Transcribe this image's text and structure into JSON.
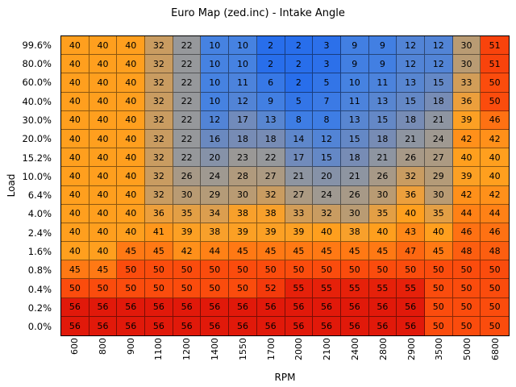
{
  "chart_data": {
    "type": "heatmap",
    "title": "Euro Map (zed.inc) - Intake Angle",
    "xlabel": "RPM",
    "ylabel": "Load",
    "legend": "none",
    "grid": "on",
    "x_categories": [
      "600",
      "800",
      "900",
      "1100",
      "1200",
      "1400",
      "1550",
      "1700",
      "2000",
      "2100",
      "2400",
      "2800",
      "2900",
      "3500",
      "5000",
      "6800"
    ],
    "y_categories": [
      "99.6%",
      "80.0%",
      "60.0%",
      "40.0%",
      "30.0%",
      "20.0%",
      "15.2%",
      "10.0%",
      "6.4%",
      "4.0%",
      "2.4%",
      "1.6%",
      "0.8%",
      "0.4%",
      "0.2%",
      "0.0%"
    ],
    "values": [
      [
        40,
        40,
        40,
        32,
        22,
        10,
        10,
        2,
        2,
        3,
        9,
        9,
        12,
        12,
        30,
        51
      ],
      [
        40,
        40,
        40,
        32,
        22,
        10,
        10,
        2,
        2,
        3,
        9,
        9,
        12,
        12,
        30,
        51
      ],
      [
        40,
        40,
        40,
        32,
        22,
        10,
        11,
        6,
        2,
        5,
        10,
        11,
        13,
        15,
        33,
        50
      ],
      [
        40,
        40,
        40,
        32,
        22,
        10,
        12,
        9,
        5,
        7,
        11,
        13,
        15,
        18,
        36,
        50
      ],
      [
        40,
        40,
        40,
        32,
        22,
        12,
        17,
        13,
        8,
        8,
        13,
        15,
        18,
        21,
        39,
        46
      ],
      [
        40,
        40,
        40,
        32,
        22,
        16,
        18,
        18,
        14,
        12,
        15,
        18,
        21,
        24,
        42,
        42
      ],
      [
        40,
        40,
        40,
        32,
        22,
        20,
        23,
        22,
        17,
        15,
        18,
        21,
        26,
        27,
        40,
        40
      ],
      [
        40,
        40,
        40,
        32,
        26,
        24,
        28,
        27,
        21,
        20,
        21,
        26,
        32,
        29,
        39,
        40
      ],
      [
        40,
        40,
        40,
        32,
        30,
        29,
        30,
        32,
        27,
        24,
        26,
        30,
        36,
        30,
        42,
        42
      ],
      [
        40,
        40,
        40,
        36,
        35,
        34,
        38,
        38,
        33,
        32,
        30,
        35,
        40,
        35,
        44,
        44
      ],
      [
        40,
        40,
        40,
        41,
        39,
        38,
        39,
        39,
        39,
        40,
        38,
        40,
        43,
        40,
        46,
        46
      ],
      [
        40,
        40,
        45,
        45,
        42,
        44,
        45,
        45,
        45,
        45,
        45,
        45,
        47,
        45,
        48,
        48
      ],
      [
        45,
        45,
        50,
        50,
        50,
        50,
        50,
        50,
        50,
        50,
        50,
        50,
        50,
        50,
        50,
        50
      ],
      [
        50,
        50,
        50,
        50,
        50,
        50,
        50,
        52,
        55,
        55,
        55,
        55,
        55,
        50,
        50,
        50
      ],
      [
        56,
        56,
        56,
        56,
        56,
        56,
        56,
        56,
        56,
        56,
        56,
        56,
        56,
        50,
        50,
        50
      ],
      [
        56,
        56,
        56,
        56,
        56,
        56,
        56,
        56,
        56,
        56,
        56,
        56,
        56,
        50,
        50,
        50
      ]
    ],
    "value_range": [
      2,
      56
    ],
    "colormap_stops": [
      {
        "t": 0.0,
        "color": "#286EEB"
      },
      {
        "t": 0.15,
        "color": "#4682E1"
      },
      {
        "t": 0.3,
        "color": "#788CB4"
      },
      {
        "t": 0.37,
        "color": "#96989B"
      },
      {
        "t": 0.52,
        "color": "#B99B73"
      },
      {
        "t": 0.65,
        "color": "#F5A032"
      },
      {
        "t": 0.7,
        "color": "#FFA01E"
      },
      {
        "t": 0.8,
        "color": "#FF7814"
      },
      {
        "t": 0.9,
        "color": "#FA460C"
      },
      {
        "t": 1.0,
        "color": "#E1190A"
      }
    ],
    "frame_color": "#000000",
    "grid_line_color": "rgba(0,0,0,0.45)",
    "cell_text_color": "#000000",
    "background_color": "#ffffff"
  }
}
